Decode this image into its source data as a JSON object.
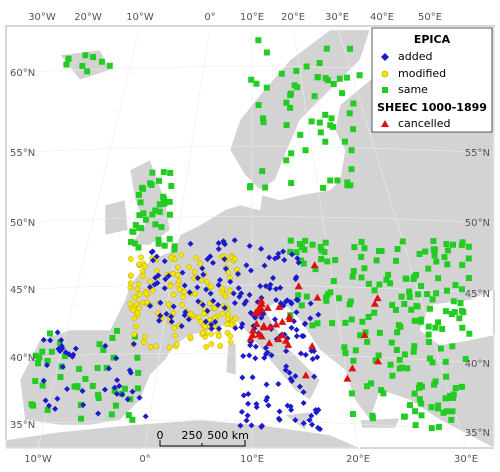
{
  "map": {
    "top_lon_labels": [
      "30°W",
      "20°W",
      "10°W",
      "0°",
      "10°E",
      "20°E",
      "30°E",
      "40°E",
      "50°E"
    ],
    "bottom_lon_labels": [
      "10°W",
      "0°",
      "10°E",
      "20°E",
      "30°E"
    ],
    "left_lat_labels": [
      "60°N",
      "55°N",
      "50°N",
      "45°N",
      "40°N",
      "35°N"
    ],
    "right_lat_labels": [
      "55°N",
      "50°N",
      "45°N",
      "40°N",
      "35°N"
    ],
    "legend": {
      "title1": "EPICA",
      "items1": [
        "added",
        "modified",
        "same"
      ],
      "title2": "SHEEC 1000-1899",
      "items2": [
        "cancelled"
      ]
    },
    "scale_bar": {
      "labels": [
        "0",
        "250",
        "500 km"
      ]
    }
  }
}
